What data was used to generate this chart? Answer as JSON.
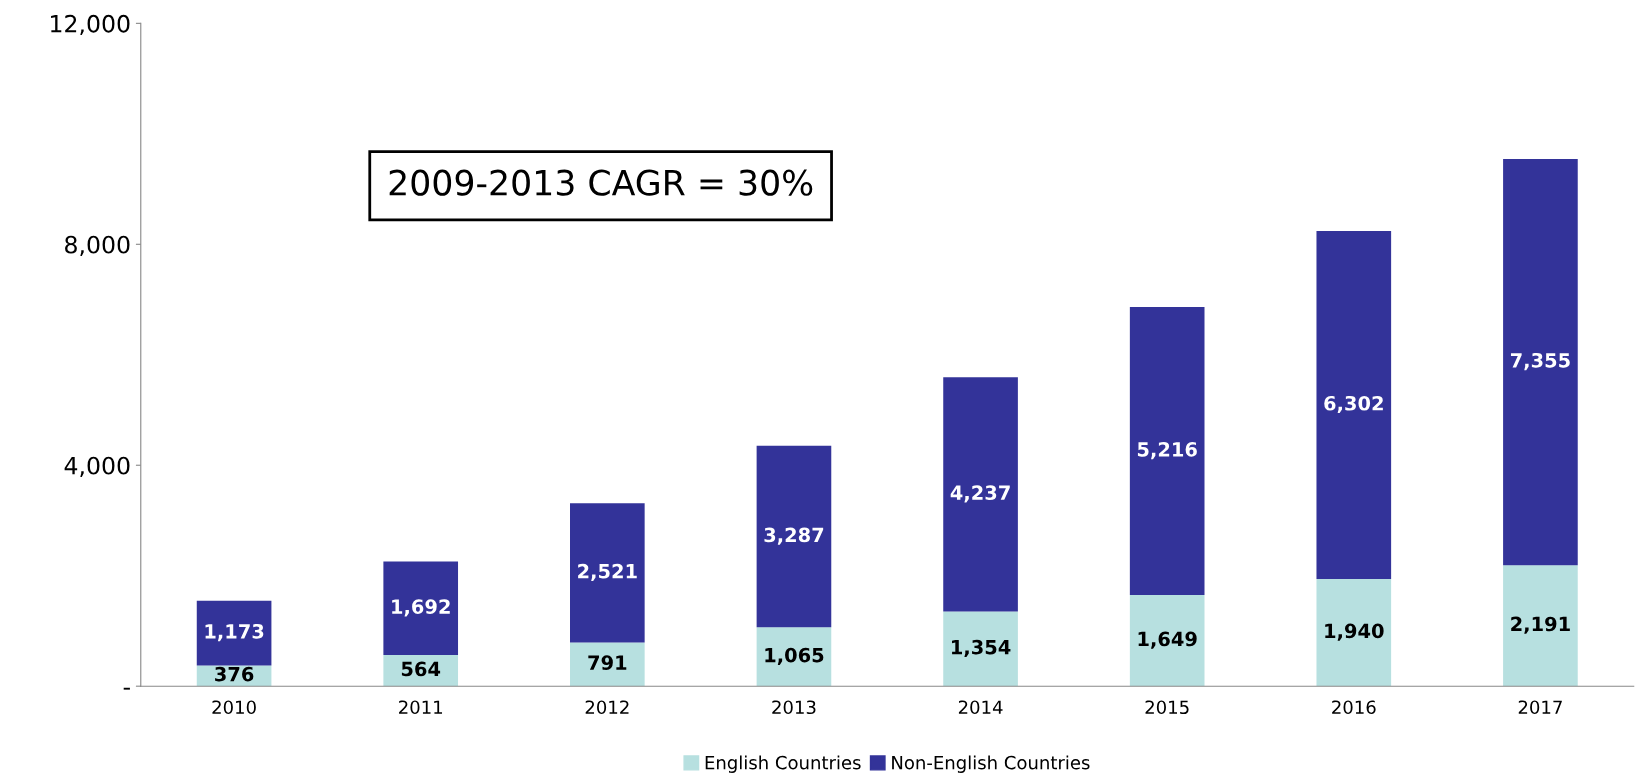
{
  "chart_data": {
    "type": "bar",
    "stacked": true,
    "categories": [
      "2010",
      "2011",
      "2012",
      "2013",
      "2014",
      "2015",
      "2016",
      "2017"
    ],
    "series": [
      {
        "name": "English Countries",
        "color": "#b7e0e0",
        "values": [
          376,
          564,
          791,
          1065,
          1354,
          1649,
          1940,
          2191
        ],
        "value_labels": [
          "376",
          "564",
          "791",
          "1,065",
          "1,354",
          "1,649",
          "1,940",
          "2,191"
        ]
      },
      {
        "name": "Non-English Countries",
        "color": "#333399",
        "values": [
          1173,
          1692,
          2521,
          3287,
          4237,
          5216,
          6302,
          7355
        ],
        "value_labels": [
          "1,173",
          "1,692",
          "2,521",
          "3,287",
          "4,237",
          "5,216",
          "6,302",
          "7,355"
        ]
      }
    ],
    "ylim": [
      0,
      12000
    ],
    "yticks": [
      {
        "value": 0,
        "label": "-"
      },
      {
        "value": 4000,
        "label": "4,000"
      },
      {
        "value": 8000,
        "label": "8,000"
      },
      {
        "value": 12000,
        "label": "12,000"
      }
    ],
    "annotations": [
      "2009-2013 CAGR = 30%"
    ],
    "legend": "bottom",
    "grid": false
  }
}
